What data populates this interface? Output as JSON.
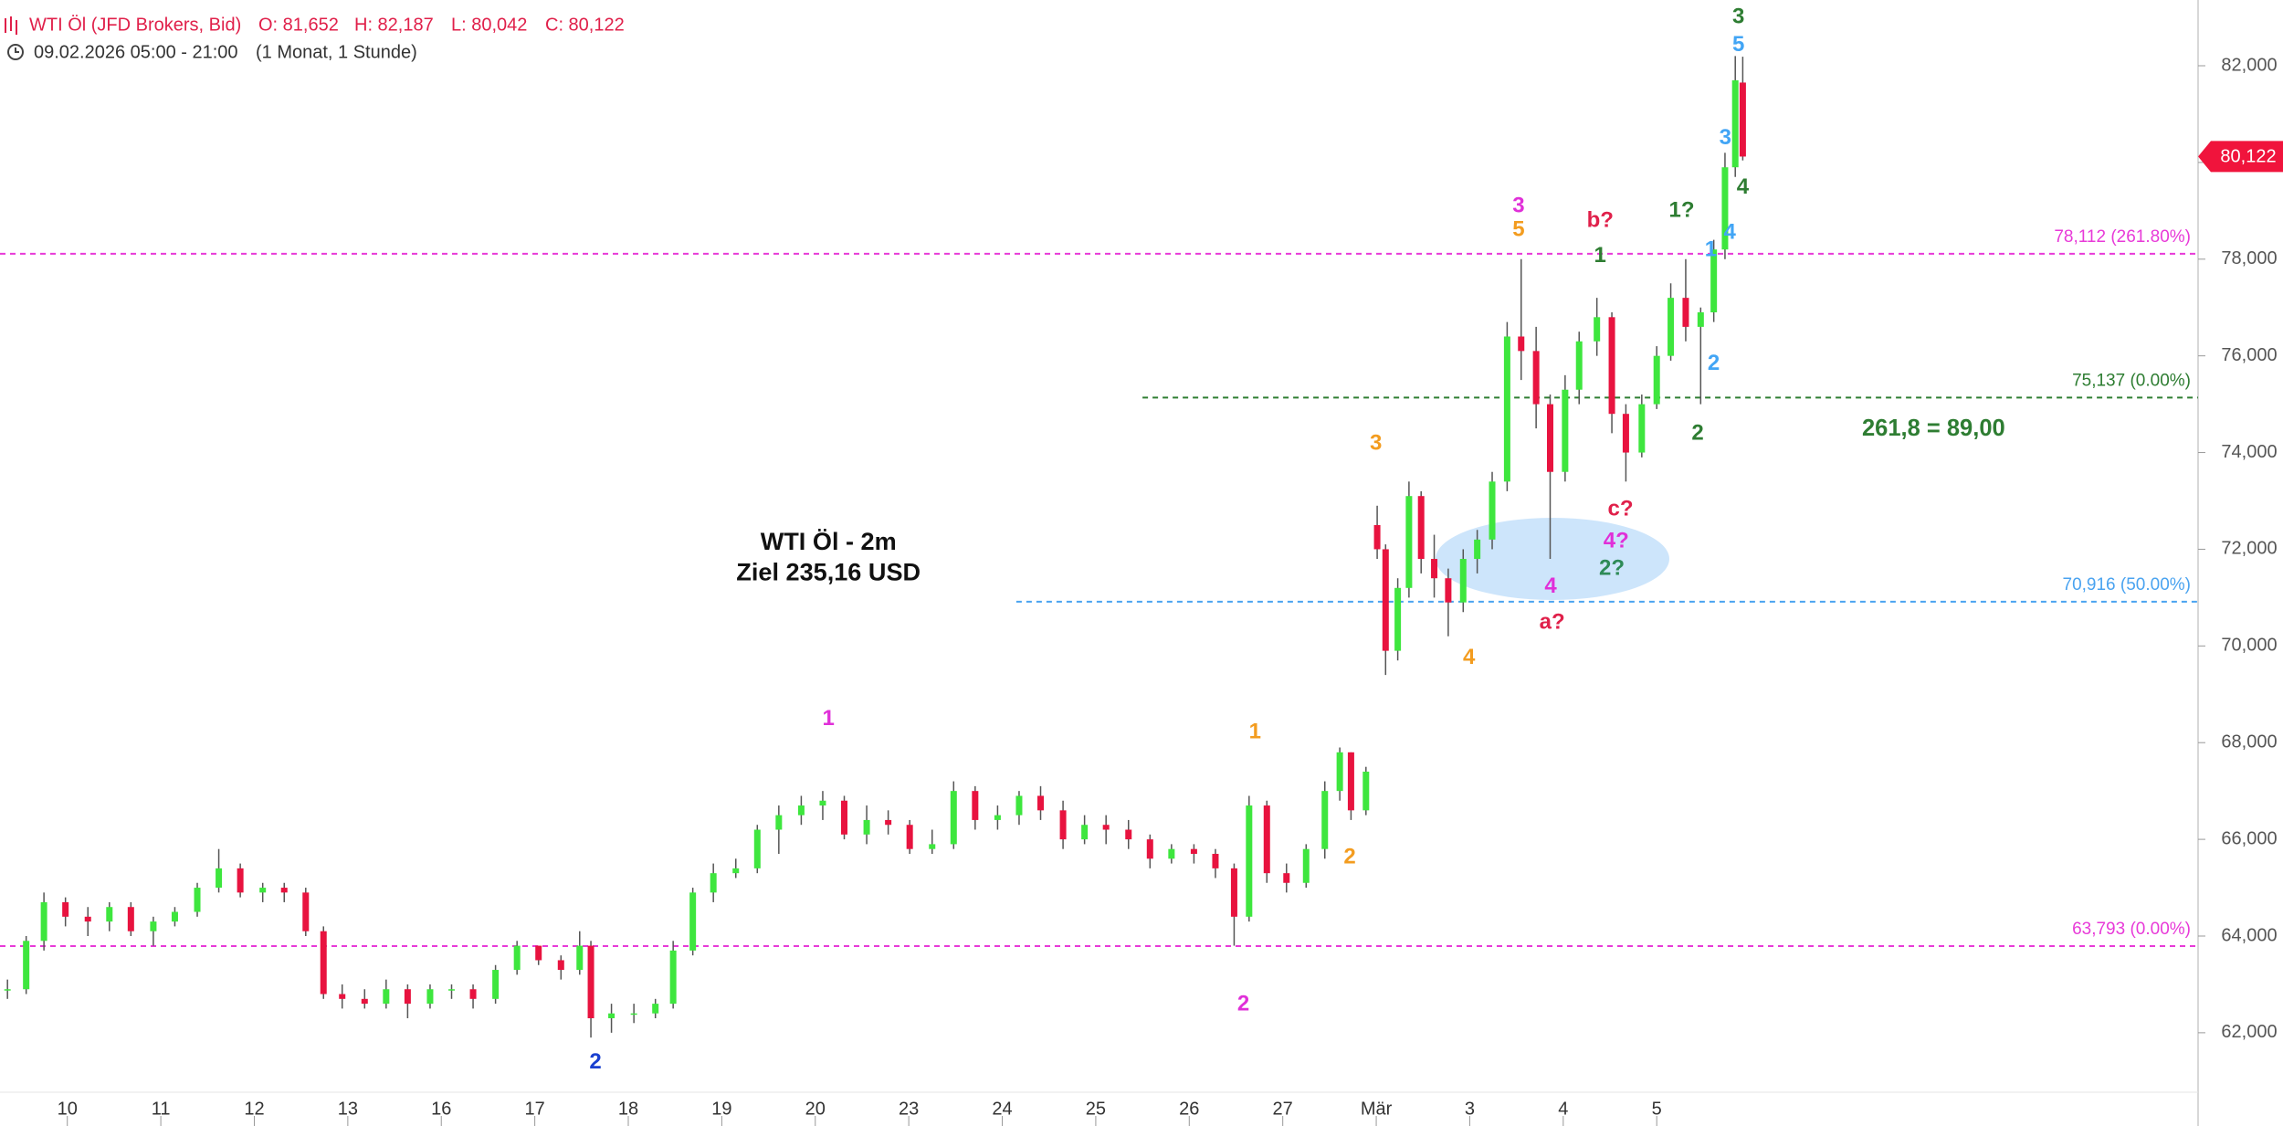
{
  "chart_data": {
    "type": "candlestick",
    "title": "WTI Öl (JFD Brokers, Bid)",
    "ohlc_text": [
      "O: 81,652",
      "H: 82,187",
      "L: 80,042",
      "C: 80,122"
    ],
    "period": "09.02.2026 05:00 - 21:00",
    "interval": "(1 Monat, 1 Stunde)",
    "up_color": "#3ee63e",
    "down_color": "#e8133f",
    "x": [
      -0.64,
      -0.44,
      -0.25,
      -0.02,
      0.22,
      0.45,
      0.68,
      0.92,
      1.15,
      1.39,
      1.62,
      1.85,
      2.09,
      2.32,
      2.55,
      2.74,
      2.94,
      3.18,
      3.41,
      3.64,
      3.88,
      4.11,
      4.34,
      4.58,
      4.81,
      5.04,
      5.28,
      5.48,
      5.6,
      5.82,
      6.06,
      6.29,
      6.48,
      6.69,
      6.91,
      7.15,
      7.38,
      7.61,
      7.85,
      8.08,
      8.31,
      8.55,
      8.78,
      9.01,
      9.25,
      9.48,
      9.71,
      9.95,
      10.18,
      10.41,
      10.65,
      10.88,
      11.11,
      11.35,
      11.58,
      11.81,
      12.05,
      12.28,
      12.48,
      12.64,
      12.83,
      13.04,
      13.25,
      13.45,
      13.61,
      13.73,
      13.89,
      14.01,
      14.1,
      14.23,
      14.35,
      14.48,
      14.62,
      14.77,
      14.93,
      15.08,
      15.24,
      15.4,
      15.55,
      15.71,
      15.86,
      16.02,
      16.17,
      16.36,
      16.52,
      16.67,
      16.84,
      17.0,
      17.15,
      17.31,
      17.47,
      17.61,
      17.73,
      17.84,
      17.92
    ],
    "open": [
      62.9,
      62.9,
      63.9,
      64.7,
      64.4,
      64.3,
      64.6,
      64.1,
      64.3,
      64.5,
      65.0,
      65.4,
      64.9,
      65.0,
      64.9,
      64.1,
      62.8,
      62.7,
      62.6,
      62.9,
      62.6,
      62.9,
      62.9,
      62.7,
      63.3,
      63.8,
      63.5,
      63.3,
      63.8,
      62.3,
      62.4,
      62.4,
      62.6,
      63.7,
      64.9,
      65.3,
      65.4,
      66.2,
      66.5,
      66.7,
      66.8,
      66.1,
      66.4,
      66.3,
      65.8,
      65.9,
      67.0,
      66.4,
      66.5,
      66.9,
      66.6,
      66.0,
      66.3,
      66.2,
      66.0,
      65.6,
      65.8,
      65.7,
      65.4,
      64.4,
      66.7,
      65.3,
      65.1,
      65.8,
      67.0,
      67.8,
      66.6,
      72.5,
      72.0,
      69.9,
      71.2,
      73.1,
      71.8,
      71.4,
      70.9,
      71.8,
      72.2,
      73.4,
      76.4,
      76.1,
      75.0,
      73.6,
      75.3,
      76.3,
      76.8,
      74.8,
      74.0,
      75.0,
      76.0,
      77.2,
      76.6,
      76.9,
      78.2,
      79.9,
      81.652
    ],
    "high": [
      63.1,
      64.0,
      64.9,
      64.8,
      64.6,
      64.7,
      64.7,
      64.4,
      64.6,
      65.1,
      65.8,
      65.5,
      65.1,
      65.1,
      65.0,
      64.2,
      63.0,
      62.9,
      63.1,
      63.0,
      63.0,
      63.0,
      63.0,
      63.4,
      63.9,
      63.8,
      63.6,
      64.1,
      63.9,
      62.6,
      62.6,
      62.7,
      63.9,
      65.0,
      65.5,
      65.6,
      66.3,
      66.7,
      66.9,
      67.0,
      66.9,
      66.7,
      66.6,
      66.4,
      66.2,
      67.2,
      67.1,
      66.7,
      67.0,
      67.1,
      66.8,
      66.5,
      66.5,
      66.4,
      66.1,
      65.9,
      65.9,
      65.8,
      65.5,
      66.9,
      66.8,
      65.5,
      65.9,
      67.2,
      67.9,
      67.8,
      67.5,
      72.9,
      72.1,
      71.4,
      73.4,
      73.2,
      72.3,
      71.6,
      72.0,
      72.4,
      73.6,
      76.7,
      78.0,
      76.6,
      75.2,
      75.6,
      76.5,
      77.2,
      76.9,
      75.0,
      75.2,
      76.2,
      77.5,
      78.0,
      77.0,
      78.4,
      80.2,
      82.2,
      82.187
    ],
    "low": [
      62.7,
      62.8,
      63.7,
      64.2,
      64.0,
      64.1,
      64.0,
      63.8,
      64.2,
      64.4,
      64.9,
      64.8,
      64.7,
      64.7,
      64.0,
      62.7,
      62.5,
      62.5,
      62.5,
      62.3,
      62.5,
      62.7,
      62.5,
      62.6,
      63.2,
      63.4,
      63.1,
      63.2,
      61.9,
      62.0,
      62.2,
      62.3,
      62.5,
      63.6,
      64.7,
      65.2,
      65.3,
      65.7,
      66.3,
      66.4,
      66.0,
      65.9,
      66.1,
      65.7,
      65.7,
      65.8,
      66.2,
      66.2,
      66.3,
      66.4,
      65.8,
      65.9,
      65.9,
      65.8,
      65.4,
      65.5,
      65.5,
      65.2,
      63.8,
      64.3,
      65.1,
      64.9,
      65.0,
      65.6,
      66.8,
      66.4,
      66.5,
      71.8,
      69.4,
      69.7,
      71.0,
      71.5,
      71.0,
      70.2,
      70.7,
      71.5,
      72.0,
      73.2,
      75.5,
      74.5,
      71.8,
      73.4,
      75.0,
      76.0,
      74.4,
      73.4,
      73.9,
      74.9,
      75.9,
      76.3,
      75.0,
      76.7,
      78.0,
      79.7,
      80.042
    ],
    "close": [
      62.9,
      63.9,
      64.7,
      64.4,
      64.3,
      64.6,
      64.1,
      64.3,
      64.5,
      65.0,
      65.4,
      64.9,
      65.0,
      64.9,
      64.1,
      62.8,
      62.7,
      62.6,
      62.9,
      62.6,
      62.9,
      62.9,
      62.7,
      63.3,
      63.8,
      63.5,
      63.3,
      63.8,
      62.3,
      62.4,
      62.4,
      62.6,
      63.7,
      64.9,
      65.3,
      65.4,
      66.2,
      66.5,
      66.7,
      66.8,
      66.1,
      66.4,
      66.3,
      65.8,
      65.9,
      67.0,
      66.4,
      66.5,
      66.9,
      66.6,
      66.0,
      66.3,
      66.2,
      66.0,
      65.6,
      65.8,
      65.7,
      65.4,
      64.4,
      66.7,
      65.3,
      65.1,
      65.8,
      67.0,
      67.8,
      66.6,
      67.4,
      72.0,
      69.9,
      71.2,
      73.1,
      71.8,
      71.4,
      70.9,
      71.8,
      72.2,
      73.4,
      76.4,
      76.1,
      75.0,
      73.6,
      75.3,
      76.3,
      76.8,
      74.8,
      74.0,
      75.0,
      76.0,
      77.2,
      76.6,
      76.9,
      78.2,
      79.9,
      81.7,
      80.122
    ],
    "last_label": "80,122",
    "last_color": "#f0143c",
    "xlim": [
      -0.72,
      22.79
    ],
    "xticks": [
      {
        "value": 0,
        "label": "10"
      },
      {
        "value": 1,
        "label": "11"
      },
      {
        "value": 2,
        "label": "12"
      },
      {
        "value": 3,
        "label": "13"
      },
      {
        "value": 4,
        "label": "16"
      },
      {
        "value": 5,
        "label": "17"
      },
      {
        "value": 6,
        "label": "18"
      },
      {
        "value": 7,
        "label": "19"
      },
      {
        "value": 8,
        "label": "20"
      },
      {
        "value": 9,
        "label": "23"
      },
      {
        "value": 10,
        "label": "24"
      },
      {
        "value": 11,
        "label": "25"
      },
      {
        "value": 12,
        "label": "26"
      },
      {
        "value": 13,
        "label": "27"
      },
      {
        "value": 14,
        "label": "Mär"
      },
      {
        "value": 15,
        "label": "3"
      },
      {
        "value": 16,
        "label": "4"
      },
      {
        "value": 17,
        "label": "5"
      }
    ],
    "ylim": [
      60.77,
      83.36
    ],
    "yticks": [
      {
        "value": 62,
        "label": "62,000"
      },
      {
        "value": 64,
        "label": "64,000"
      },
      {
        "value": 66,
        "label": "66,000"
      },
      {
        "value": 68,
        "label": "68,000"
      },
      {
        "value": 70,
        "label": "70,000"
      },
      {
        "value": 72,
        "label": "72,000"
      },
      {
        "value": 74,
        "label": "74,000"
      },
      {
        "value": 76,
        "label": "76,000"
      },
      {
        "value": 78,
        "label": "78,000"
      },
      {
        "value": 80,
        "label": "80,000"
      },
      {
        "value": 82,
        "label": "82,000"
      }
    ],
    "levels": [
      {
        "value": 78.112,
        "label": "78,112 (261.80%)",
        "color": "#e83ad8"
      },
      {
        "value": 75.137,
        "label": "75,137 (0.00%)",
        "color": "#2e7d32",
        "x_start": 11.5
      },
      {
        "value": 70.916,
        "label": "70,916 (50.00%)",
        "color": "#4aa3f0",
        "x_start": 10.15
      },
      {
        "value": 63.793,
        "label": "63,793 (0.00%)",
        "color": "#e83ad8"
      }
    ],
    "annotations": [
      {
        "text": "3",
        "color": "#2e7d32"
      },
      {
        "text": "5",
        "color": "#42a5f5"
      },
      {
        "text": "3",
        "color": "#42a5f5"
      },
      {
        "text": "4",
        "color": "#2e7d32"
      },
      {
        "text": "1?",
        "color": "#2e7d32"
      },
      {
        "text": "4",
        "color": "#42a5f5"
      },
      {
        "text": "1",
        "color": "#42a5f5"
      },
      {
        "text": "3",
        "color": "#e030d8"
      },
      {
        "text": "5",
        "color": "#f39c1f"
      },
      {
        "text": "b?",
        "color": "#e0204a"
      },
      {
        "text": "1",
        "color": "#2e7d32"
      },
      {
        "text": "2",
        "color": "#42a5f5"
      },
      {
        "text": "2",
        "color": "#2e7d32"
      },
      {
        "text": "3",
        "color": "#f39c1f"
      },
      {
        "text": "c?",
        "color": "#e0204a"
      },
      {
        "text": "4?",
        "color": "#e030d8"
      },
      {
        "text": "2?",
        "color": "#2e8b57"
      },
      {
        "text": "4",
        "color": "#e030d8"
      },
      {
        "text": "a?",
        "color": "#e0204a"
      },
      {
        "text": "4",
        "color": "#f39c1f"
      },
      {
        "text": "1",
        "color": "#e030d8"
      },
      {
        "text": "1",
        "color": "#f39c1f"
      },
      {
        "text": "2",
        "color": "#f39c1f"
      },
      {
        "text": "2",
        "color": "#e030d8"
      },
      {
        "text": "2",
        "color": "#1a40d0"
      }
    ],
    "notes": [
      {
        "text": "WTI Öl - 2m",
        "color": "#111111"
      },
      {
        "text": "Ziel 235,16 USD",
        "color": "#111111"
      },
      {
        "text": "261,8 = 89,00",
        "color": "#2e7d32"
      }
    ]
  }
}
